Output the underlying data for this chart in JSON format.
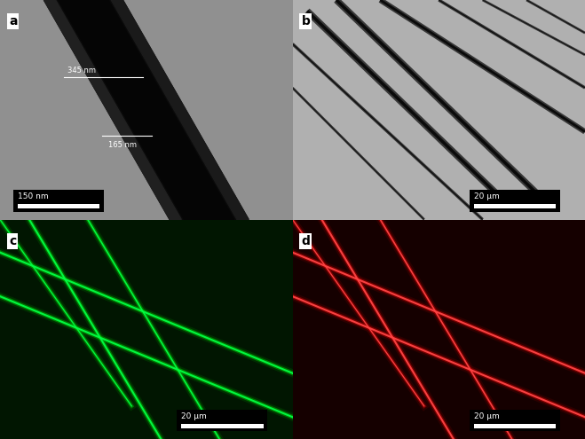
{
  "panel_labels": [
    "a",
    "b",
    "c",
    "d"
  ],
  "panel_a": {
    "bg_color": "#909090",
    "fiber_outer_color": "#0d0d0d",
    "fiber_inner_color": "#080808",
    "annotation_color": "white",
    "label_345": "345 nm",
    "label_165": "165 nm",
    "scalebar_label": "150 nm",
    "scalebar_color": "white",
    "scalebar_bg": "black"
  },
  "panel_b": {
    "bg_color": "#b0b0b0",
    "fiber_color": "#111111",
    "scalebar_label": "20 μm",
    "scalebar_bg": "black"
  },
  "panel_c": {
    "bg_color": "#011601",
    "fiber_color": "#00ff00",
    "scalebar_label": "20 μm",
    "scalebar_bg": "black"
  },
  "panel_d": {
    "bg_color": "#150000",
    "fiber_color": "#ff2200",
    "scalebar_label": "20 μm",
    "scalebar_bg": "black"
  },
  "figsize": [
    6.59,
    4.95
  ],
  "dpi": 100
}
